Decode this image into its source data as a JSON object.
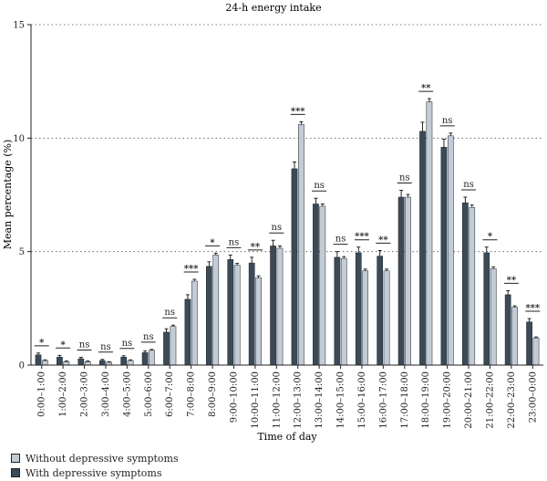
{
  "chart_data": {
    "type": "bar",
    "title": "24-h energy intake",
    "xlabel": "Time of day",
    "ylabel": "Mean percentage (%)",
    "ylim": [
      0,
      15
    ],
    "yticks": [
      0,
      5,
      10,
      15
    ],
    "grid": "horizontal-dotted",
    "categories": [
      "0:00–1:00",
      "1:00–2:00",
      "2:00–3:00",
      "3:00–4:00",
      "4:00–5:00",
      "5:00–6:00",
      "6:00–7:00",
      "7:00–8:00",
      "8:00–9:00",
      "9:00–10:00",
      "10:00–11:00",
      "11:00–12:00",
      "12:00–13:00",
      "13:00–14:00",
      "14:00–15:00",
      "15:00–16:00",
      "16:00–17:00",
      "17:00–18:00",
      "18:00–19:00",
      "19:00–20:00",
      "20:00–21:00",
      "21:00–22:00",
      "22:00–23:00",
      "23:00–0:00"
    ],
    "series": [
      {
        "name": "With depressive symptoms",
        "color": "#3b4a56",
        "values": [
          0.45,
          0.35,
          0.28,
          0.2,
          0.35,
          0.55,
          1.45,
          2.9,
          4.35,
          4.65,
          4.5,
          5.25,
          8.65,
          7.1,
          4.75,
          4.95,
          4.8,
          7.4,
          10.3,
          9.6,
          7.15,
          4.95,
          3.1,
          1.9
        ],
        "errors": [
          0.08,
          0.08,
          0.06,
          0.05,
          0.06,
          0.08,
          0.15,
          0.2,
          0.2,
          0.2,
          0.25,
          0.25,
          0.3,
          0.25,
          0.25,
          0.25,
          0.25,
          0.3,
          0.4,
          0.35,
          0.25,
          0.25,
          0.18,
          0.15
        ]
      },
      {
        "name": "Without depressive symptoms",
        "color": "#c3ccd6",
        "values": [
          0.2,
          0.15,
          0.15,
          0.12,
          0.2,
          0.65,
          1.7,
          3.7,
          4.85,
          4.4,
          3.85,
          5.15,
          10.6,
          7.0,
          4.7,
          4.15,
          4.15,
          7.4,
          11.6,
          10.1,
          6.95,
          4.25,
          2.55,
          1.2
        ],
        "errors": [
          0.03,
          0.03,
          0.03,
          0.03,
          0.03,
          0.04,
          0.06,
          0.08,
          0.08,
          0.08,
          0.08,
          0.1,
          0.12,
          0.1,
          0.08,
          0.08,
          0.08,
          0.12,
          0.14,
          0.12,
          0.1,
          0.08,
          0.06,
          0.04
        ]
      }
    ],
    "significance": [
      "*",
      "*",
      "ns",
      "ns",
      "ns",
      "ns",
      "ns",
      "***",
      "*",
      "ns",
      "**",
      "ns",
      "***",
      "ns",
      "ns",
      "***",
      "**",
      "ns",
      "**",
      "ns",
      "ns",
      "*",
      "**",
      "***"
    ],
    "legend_position": "bottom-left"
  },
  "legend": {
    "without": "Without depressive symptoms",
    "with": "With depressive symptoms"
  }
}
